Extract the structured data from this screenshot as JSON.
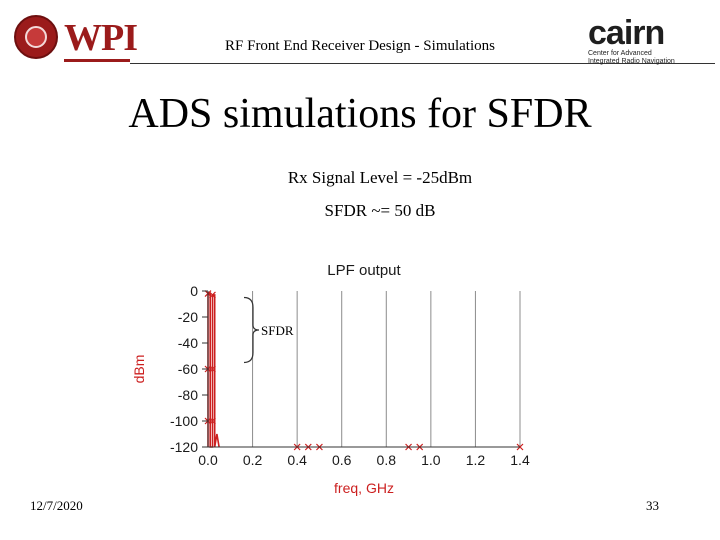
{
  "header": {
    "wpi_logo_text": "WPI",
    "title": "RF Front End Receiver Design - Simulations",
    "cairn_logo_text": "cairn",
    "cairn_tagline_line1": "Center for Advanced",
    "cairn_tagline_line2": "Integrated Radio Navigation"
  },
  "slide": {
    "title": "ADS simulations for SFDR",
    "rx_signal_level": "Rx Signal Level = -25dBm",
    "sfdr_value": "SFDR ~= 50 dB"
  },
  "colors": {
    "trace": "#cc1f1f",
    "axis_text": "#1a1a1a",
    "grid": "#8c8c8c",
    "wpi_red": "#9b1b1b"
  },
  "chart_data": {
    "type": "line",
    "title": "LPF output",
    "xlabel": "freq, GHz",
    "ylabel": "dBm",
    "xlim": [
      0.0,
      1.4
    ],
    "ylim": [
      -120,
      0
    ],
    "xticks": [
      "0.0",
      "0.2",
      "0.4",
      "0.6",
      "0.8",
      "1.0",
      "1.2",
      "1.4"
    ],
    "yticks": [
      "0",
      "-20",
      "-40",
      "-60",
      "-80",
      "-100",
      "-120"
    ],
    "grid": "vertical",
    "annotation": "SFDR",
    "series": [
      {
        "x": [
          0.0,
          0.0,
          0.01,
          0.01,
          0.02,
          0.02,
          0.03,
          0.03,
          0.04,
          0.04,
          0.05
        ],
        "y": [
          -120,
          -2,
          -2,
          -120,
          -120,
          -3,
          -3,
          -120,
          -110,
          -110,
          -120
        ]
      }
    ],
    "markers": [
      {
        "x": 0.0,
        "y": -2
      },
      {
        "x": 0.02,
        "y": -3
      },
      {
        "x": 0.0,
        "y": -60
      },
      {
        "x": 0.02,
        "y": -60
      },
      {
        "x": 0.0,
        "y": -100
      },
      {
        "x": 0.02,
        "y": -100
      },
      {
        "x": 0.4,
        "y": -120
      },
      {
        "x": 0.45,
        "y": -120
      },
      {
        "x": 0.5,
        "y": -120
      },
      {
        "x": 0.9,
        "y": -120
      },
      {
        "x": 0.95,
        "y": -120
      },
      {
        "x": 1.4,
        "y": -120
      }
    ]
  },
  "footer": {
    "date": "12/7/2020",
    "page": "33"
  }
}
